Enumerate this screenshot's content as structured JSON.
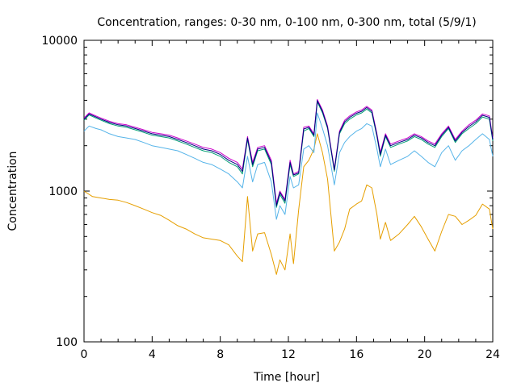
{
  "chart_data": {
    "type": "line",
    "title": "Concentration, ranges: 0-30 nm, 0-100 nm, 0-300 nm, total (5/9/1)",
    "xlabel": "Time [hour]",
    "ylabel": "Concentration",
    "xlim": [
      0,
      24
    ],
    "ylim": [
      100,
      10000
    ],
    "yscale": "log",
    "xticks": [
      0,
      4,
      8,
      12,
      16,
      20,
      24
    ],
    "yticks": [
      100,
      1000,
      10000
    ],
    "xtick_labels": [
      "0",
      "4",
      "8",
      "12",
      "16",
      "20",
      "24"
    ],
    "ytick_labels": [
      "100",
      "1000",
      "10000"
    ],
    "grid": false,
    "legend": "none",
    "series": [
      {
        "color": "#e69f00",
        "x": [
          0,
          0.5,
          1,
          1.5,
          2,
          2.5,
          3,
          3.5,
          4,
          4.5,
          5,
          5.5,
          6,
          6.5,
          7,
          7.5,
          8,
          8.5,
          9,
          9.3,
          9.6,
          9.9,
          10.2,
          10.6,
          11,
          11.3,
          11.5,
          11.8,
          12.1,
          12.3,
          12.6,
          12.9,
          13.2,
          13.5,
          13.7,
          14,
          14.3,
          14.7,
          15,
          15.3,
          15.6,
          16,
          16.3,
          16.6,
          16.9,
          17.2,
          17.4,
          17.7,
          18,
          18.5,
          19,
          19.4,
          19.8,
          20.2,
          20.6,
          21,
          21.4,
          21.8,
          22.2,
          22.6,
          23,
          23.4,
          23.8,
          24
        ],
        "y": [
          1000,
          920,
          900,
          880,
          870,
          840,
          800,
          760,
          720,
          690,
          640,
          590,
          560,
          520,
          490,
          480,
          470,
          440,
          370,
          340,
          920,
          400,
          520,
          530,
          380,
          280,
          350,
          300,
          520,
          330,
          750,
          1450,
          1600,
          1900,
          2400,
          1800,
          1200,
          400,
          460,
          560,
          760,
          820,
          860,
          1100,
          1050,
          700,
          480,
          620,
          470,
          520,
          600,
          680,
          580,
          480,
          400,
          540,
          700,
          680,
          600,
          640,
          690,
          820,
          760,
          560
        ]
      },
      {
        "color": "#56b4e9",
        "x": [
          0,
          0.3,
          0.7,
          1,
          1.5,
          2,
          2.5,
          3,
          3.5,
          4,
          4.5,
          5,
          5.5,
          6,
          6.5,
          7,
          7.5,
          8,
          8.5,
          9,
          9.3,
          9.6,
          9.9,
          10.2,
          10.6,
          11,
          11.3,
          11.5,
          11.8,
          12.1,
          12.3,
          12.6,
          12.9,
          13.2,
          13.5,
          13.7,
          14,
          14.3,
          14.7,
          15,
          15.3,
          15.6,
          16,
          16.3,
          16.6,
          16.9,
          17.2,
          17.4,
          17.7,
          18,
          18.5,
          19,
          19.4,
          19.8,
          20.2,
          20.6,
          21,
          21.4,
          21.8,
          22.2,
          22.6,
          23,
          23.4,
          23.8,
          24
        ],
        "y": [
          2500,
          2700,
          2600,
          2550,
          2400,
          2300,
          2250,
          2200,
          2100,
          2000,
          1950,
          1900,
          1850,
          1750,
          1650,
          1550,
          1500,
          1400,
          1300,
          1150,
          1050,
          1700,
          1150,
          1500,
          1550,
          1150,
          650,
          800,
          700,
          1250,
          1050,
          1100,
          1900,
          2000,
          1800,
          3300,
          2600,
          2000,
          1100,
          1800,
          2100,
          2300,
          2500,
          2600,
          2800,
          2700,
          1900,
          1450,
          1900,
          1500,
          1600,
          1700,
          1850,
          1700,
          1550,
          1450,
          1800,
          2000,
          1600,
          1850,
          2000,
          2200,
          2400,
          2200,
          1700
        ]
      },
      {
        "color": "#009e73",
        "x": [
          0,
          0.3,
          0.7,
          1,
          1.5,
          2,
          2.5,
          3,
          3.5,
          4,
          4.5,
          5,
          5.5,
          6,
          6.5,
          7,
          7.5,
          8,
          8.5,
          9,
          9.3,
          9.6,
          9.9,
          10.2,
          10.6,
          11,
          11.3,
          11.5,
          11.8,
          12.1,
          12.3,
          12.6,
          12.9,
          13.2,
          13.5,
          13.7,
          14,
          14.3,
          14.7,
          15,
          15.3,
          15.6,
          16,
          16.3,
          16.6,
          16.9,
          17.2,
          17.4,
          17.7,
          18,
          18.5,
          19,
          19.4,
          19.8,
          20.2,
          20.6,
          21,
          21.4,
          21.8,
          22.2,
          22.6,
          23,
          23.4,
          23.8,
          24
        ],
        "y": [
          2950,
          3200,
          3050,
          2950,
          2800,
          2700,
          2650,
          2550,
          2450,
          2350,
          2300,
          2250,
          2150,
          2050,
          1950,
          1850,
          1800,
          1700,
          1550,
          1450,
          1300,
          2200,
          1450,
          1850,
          1900,
          1500,
          780,
          950,
          830,
          1500,
          1250,
          1300,
          2500,
          2600,
          2300,
          3900,
          3300,
          2600,
          1350,
          2400,
          2800,
          3000,
          3200,
          3300,
          3500,
          3300,
          2300,
          1700,
          2300,
          1950,
          2050,
          2150,
          2300,
          2200,
          2050,
          1950,
          2300,
          2600,
          2100,
          2400,
          2600,
          2800,
          3100,
          3000,
          2150
        ]
      },
      {
        "color": "#cc00cc",
        "x": [
          0,
          0.3,
          0.7,
          1,
          1.5,
          2,
          2.5,
          3,
          3.5,
          4,
          4.5,
          5,
          5.5,
          6,
          6.5,
          7,
          7.5,
          8,
          8.5,
          9,
          9.3,
          9.6,
          9.9,
          10.2,
          10.6,
          11,
          11.3,
          11.5,
          11.8,
          12.1,
          12.3,
          12.6,
          12.9,
          13.2,
          13.5,
          13.7,
          14,
          14.3,
          14.7,
          15,
          15.3,
          15.6,
          16,
          16.3,
          16.6,
          16.9,
          17.2,
          17.4,
          17.7,
          18,
          18.5,
          19,
          19.4,
          19.8,
          20.2,
          20.6,
          21,
          21.4,
          21.8,
          22.2,
          22.6,
          23,
          23.4,
          23.8,
          24
        ],
        "y": [
          3050,
          3300,
          3150,
          3050,
          2900,
          2800,
          2750,
          2650,
          2550,
          2450,
          2400,
          2350,
          2250,
          2150,
          2050,
          1950,
          1900,
          1800,
          1650,
          1550,
          1400,
          2300,
          1550,
          1950,
          2000,
          1600,
          830,
          1000,
          880,
          1600,
          1300,
          1350,
          2650,
          2700,
          2400,
          4050,
          3450,
          2700,
          1400,
          2500,
          2950,
          3150,
          3350,
          3450,
          3650,
          3450,
          2400,
          1800,
          2400,
          2050,
          2150,
          2250,
          2400,
          2300,
          2150,
          2050,
          2400,
          2700,
          2200,
          2500,
          2750,
          2950,
          3250,
          3150,
          2250
        ]
      },
      {
        "color": "#000080",
        "x": [
          0,
          0.3,
          0.7,
          1,
          1.5,
          2,
          2.5,
          3,
          3.5,
          4,
          4.5,
          5,
          5.5,
          6,
          6.5,
          7,
          7.5,
          8,
          8.5,
          9,
          9.3,
          9.6,
          9.9,
          10.2,
          10.6,
          11,
          11.3,
          11.5,
          11.8,
          12.1,
          12.3,
          12.6,
          12.9,
          13.2,
          13.5,
          13.7,
          14,
          14.3,
          14.7,
          15,
          15.3,
          15.6,
          16,
          16.3,
          16.6,
          16.9,
          17.2,
          17.4,
          17.7,
          18,
          18.5,
          19,
          19.4,
          19.8,
          20.2,
          20.6,
          21,
          21.4,
          21.8,
          22.2,
          22.6,
          23,
          23.4,
          23.8,
          24
        ],
        "y": [
          3000,
          3250,
          3100,
          3000,
          2850,
          2750,
          2700,
          2600,
          2500,
          2400,
          2350,
          2300,
          2200,
          2100,
          2000,
          1900,
          1850,
          1750,
          1600,
          1500,
          1350,
          2250,
          1500,
          1900,
          1950,
          1550,
          800,
          980,
          860,
          1550,
          1280,
          1320,
          2580,
          2650,
          2350,
          3980,
          3380,
          2650,
          1380,
          2450,
          2880,
          3080,
          3280,
          3380,
          3580,
          3380,
          2350,
          1750,
          2350,
          2000,
          2100,
          2200,
          2350,
          2250,
          2100,
          2000,
          2350,
          2650,
          2150,
          2450,
          2680,
          2880,
          3180,
          3080,
          2200
        ]
      }
    ]
  }
}
